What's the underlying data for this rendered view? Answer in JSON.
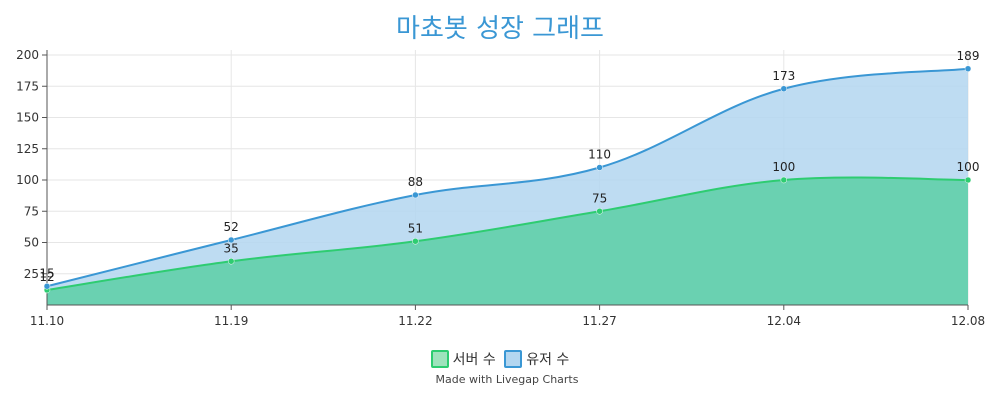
{
  "chart_data": {
    "type": "area",
    "title": "마쵸봇 성장 그래프",
    "categories": [
      "11.10",
      "11.19",
      "11.22",
      "11.27",
      "12.04",
      "12.08"
    ],
    "series": [
      {
        "name": "서버 수",
        "values": [
          12,
          35,
          51,
          75,
          100,
          100
        ],
        "color": "#2ecc71",
        "fill": "#5ccfa6"
      },
      {
        "name": "유저 수",
        "values": [
          15,
          52,
          88,
          110,
          173,
          189
        ],
        "color": "#3a97d4",
        "fill": "#b3d6f0"
      }
    ],
    "y_ticks": [
      "25",
      "50",
      "75",
      "100",
      "125",
      "150",
      "175",
      "200"
    ],
    "ylim": [
      0,
      200
    ],
    "grid": true,
    "legend_position": "bottom-center"
  },
  "footer": {
    "credit": "Made with Livegap Charts"
  }
}
